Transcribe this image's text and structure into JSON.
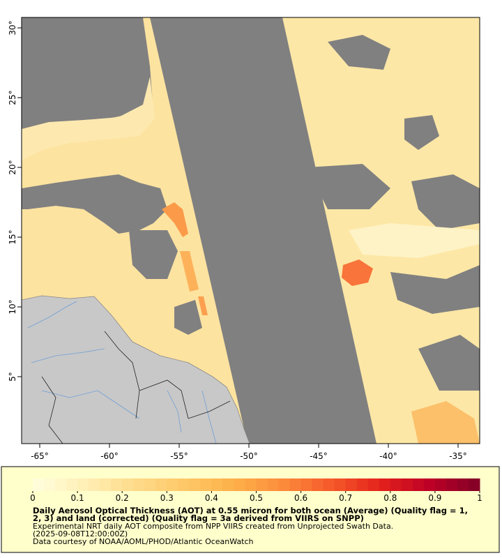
{
  "map": {
    "xlim": [
      -66.3,
      -33.45
    ],
    "ylim": [
      0.2,
      30.75
    ],
    "xticks": [
      {
        "value": -65,
        "label": "-65°"
      },
      {
        "value": -60,
        "label": "-60°"
      },
      {
        "value": -55,
        "label": "-55°"
      },
      {
        "value": -50,
        "label": "-50°"
      },
      {
        "value": -45,
        "label": "-45°"
      },
      {
        "value": -40,
        "label": "-40°"
      },
      {
        "value": -35,
        "label": "-35°"
      }
    ],
    "yticks": [
      {
        "value": 5,
        "label": "5°"
      },
      {
        "value": 10,
        "label": "10°"
      },
      {
        "value": 15,
        "label": "15°"
      },
      {
        "value": 20,
        "label": "20°"
      },
      {
        "value": 25,
        "label": "25°"
      },
      {
        "value": 30,
        "label": "30°"
      }
    ]
  },
  "colorbar": {
    "clim": [
      0,
      1
    ],
    "ticks": [
      0,
      0.1,
      0.2,
      0.3,
      0.4,
      0.5,
      0.6,
      0.7,
      0.8,
      0.9,
      1
    ],
    "colors": [
      "#ffffdd",
      "#fff0b8",
      "#fedc8c",
      "#fec96a",
      "#fdb24a",
      "#fc8d3c",
      "#f65a2a",
      "#e3221c",
      "#bd0026",
      "#800026"
    ]
  },
  "caption": {
    "title_lines": [
      "Daily Aerosol Optical Thickness (AOT) at 0.55 micron for both ocean (Average) (Quality flag = 1,",
      "2, 3) and land (corrected) (Quality flag = 3a derived from VIIRS on SNPP)"
    ],
    "lines": [
      "Experimental NRT daily AOT composite from NPP VIIRS created from Unprojected Swath Data.",
      "(2025-09-08T12:00:00Z)",
      "Data courtesy of NOAA/AOML/PHOD/Atlantic OceanWatch"
    ]
  }
}
